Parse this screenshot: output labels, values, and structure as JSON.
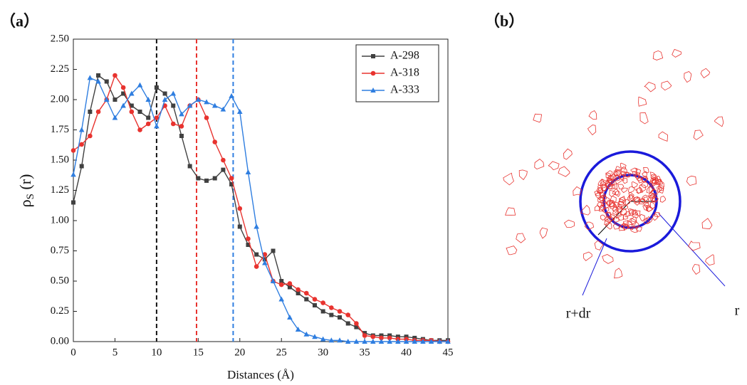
{
  "chart_data": {
    "type": "line",
    "panel_label": "（a）",
    "xlabel": "Distances (Å)",
    "ylabel_symbol": "ρ",
    "ylabel_subscript": "S",
    "ylabel_rest": " (r)",
    "x": [
      0,
      1,
      2,
      3,
      4,
      5,
      6,
      7,
      8,
      9,
      10,
      11,
      12,
      13,
      14,
      15,
      16,
      17,
      18,
      19,
      20,
      21,
      22,
      23,
      24,
      25,
      26,
      27,
      28,
      29,
      30,
      31,
      32,
      33,
      34,
      35,
      36,
      37,
      38,
      39,
      40,
      41,
      42,
      43,
      44,
      45
    ],
    "series": [
      {
        "name": "A-298",
        "color": "#404040",
        "marker": "square",
        "values": [
          1.15,
          1.45,
          1.9,
          2.2,
          2.15,
          2.0,
          2.05,
          1.95,
          1.9,
          1.85,
          2.1,
          2.05,
          1.95,
          1.7,
          1.45,
          1.35,
          1.33,
          1.35,
          1.42,
          1.3,
          0.95,
          0.8,
          0.72,
          0.68,
          0.75,
          0.5,
          0.45,
          0.4,
          0.35,
          0.3,
          0.25,
          0.22,
          0.2,
          0.15,
          0.12,
          0.07,
          0.05,
          0.05,
          0.05,
          0.04,
          0.04,
          0.03,
          0.02,
          0.01,
          0.01,
          0.01
        ]
      },
      {
        "name": "A-318",
        "color": "#e8332f",
        "marker": "circle",
        "values": [
          1.58,
          1.63,
          1.7,
          1.9,
          2.0,
          2.2,
          2.1,
          1.9,
          1.75,
          1.8,
          1.85,
          1.95,
          1.8,
          1.78,
          1.95,
          2.0,
          1.85,
          1.65,
          1.5,
          1.35,
          1.1,
          0.85,
          0.62,
          0.72,
          0.5,
          0.47,
          0.48,
          0.43,
          0.4,
          0.35,
          0.32,
          0.28,
          0.25,
          0.22,
          0.15,
          0.05,
          0.04,
          0.03,
          0.03,
          0.02,
          0.02,
          0.01,
          0.01,
          0.01,
          0,
          0
        ]
      },
      {
        "name": "A-333",
        "color": "#2f7ee0",
        "marker": "triangle",
        "values": [
          1.38,
          1.75,
          2.18,
          2.15,
          2.0,
          1.85,
          1.95,
          2.05,
          2.12,
          2.0,
          1.78,
          2.0,
          2.05,
          1.88,
          1.95,
          2.0,
          1.98,
          1.95,
          1.92,
          2.03,
          1.9,
          1.4,
          0.95,
          0.65,
          0.5,
          0.35,
          0.2,
          0.1,
          0.06,
          0.04,
          0.02,
          0.01,
          0.01,
          0,
          0,
          0,
          0,
          0,
          0,
          0,
          0,
          0,
          0,
          0,
          0,
          0
        ]
      }
    ],
    "vlines": [
      {
        "x": 10,
        "color": "#111111"
      },
      {
        "x": 14.8,
        "color": "#e8332f"
      },
      {
        "x": 19.2,
        "color": "#2f7ee0"
      }
    ],
    "xlim": [
      0,
      45
    ],
    "xticks": [
      0,
      5,
      10,
      15,
      20,
      25,
      30,
      35,
      40,
      45
    ],
    "ylim": [
      0,
      2.5
    ],
    "yticks": [
      {
        "value": 0,
        "label": "0.00"
      },
      {
        "value": 0.25,
        "label": "0.25"
      },
      {
        "value": 0.5,
        "label": "0.50"
      },
      {
        "value": 0.75,
        "label": "0.75"
      },
      {
        "value": 1,
        "label": "1.00"
      },
      {
        "value": 1.25,
        "label": "1.25"
      },
      {
        "value": 1.5,
        "label": "1.50"
      },
      {
        "value": 1.75,
        "label": "1.75"
      },
      {
        "value": 2,
        "label": "2.00"
      },
      {
        "value": 2.25,
        "label": "2.25"
      },
      {
        "value": 2.5,
        "label": "2.50"
      }
    ],
    "legend": "top-right",
    "grid": false
  },
  "diagram": {
    "panel_label": "（b）",
    "outer_label": "r+dr",
    "inner_label": "r"
  }
}
